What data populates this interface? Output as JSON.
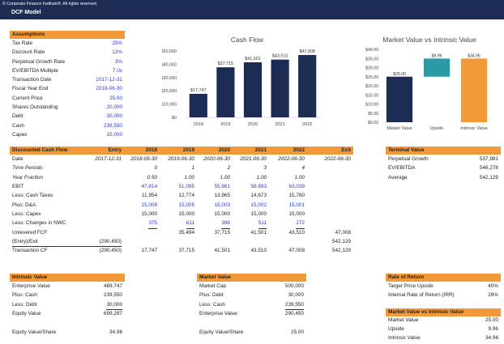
{
  "header": {
    "copyright": "© Corporate Finance Institute®. All rights reserved.",
    "model_title": "DCF Model"
  },
  "assumptions": {
    "title": "Assumptions",
    "rows": [
      {
        "label": "Tax Rate",
        "value": "25%"
      },
      {
        "label": "Discount Rate",
        "value": "12%"
      },
      {
        "label": "Perpetual Growth Rate",
        "value": "3%"
      },
      {
        "label": "EV/EBITDA Multiple",
        "value": "7.0x"
      },
      {
        "label": "Transaction Date",
        "value": "2017-12-31"
      },
      {
        "label": "Fiscal Year End",
        "value": "2018-06-30"
      },
      {
        "label": "Current Price",
        "value": "25.00"
      },
      {
        "label": "Shares Outstanding",
        "value": "20,000"
      },
      {
        "label": "Debt",
        "value": "30,000"
      },
      {
        "label": "Cash",
        "value": "239,550"
      },
      {
        "label": "Capex",
        "value": "15,000"
      }
    ]
  },
  "colors": {
    "navy": "#1c2c52",
    "orange": "#f29a38",
    "teal": "#2a9aa5",
    "input_blue": "#2b3bd0"
  },
  "chart_data": [
    {
      "type": "bar",
      "title": "Cash Flow",
      "categories": [
        "2018",
        "2019",
        "2020",
        "2021",
        "2022"
      ],
      "values": [
        17747,
        37715,
        41501,
        43510,
        47008
      ],
      "data_labels": [
        "$17,747",
        "$37,715",
        "$41,501",
        "$43,510",
        "$47,008"
      ],
      "ylim": [
        0,
        50000
      ],
      "yticks": [
        "$0",
        "$10,000",
        "$20,000",
        "$30,000",
        "$40,000",
        "$50,000"
      ],
      "grid": false,
      "color": "#1c2c52"
    },
    {
      "type": "bar",
      "title": "Market Value vs Intrinsic Value",
      "categories": [
        "Market Value",
        "Upside",
        "Intrinsic Value"
      ],
      "bars": [
        {
          "base": 0,
          "value": 25.0,
          "label": "$25.00",
          "color": "#1c2c52"
        },
        {
          "base": 25.0,
          "value": 9.96,
          "label": "$9.96",
          "color": "#2a9aa5"
        },
        {
          "base": 0,
          "value": 34.96,
          "label": "$34.96",
          "color": "#f29a38"
        }
      ],
      "ylim": [
        0,
        40
      ],
      "yticks": [
        "$0.00",
        "$5.00",
        "$10.00",
        "$15.00",
        "$20.00",
        "$25.00",
        "$30.00",
        "$35.00",
        "$40.00"
      ],
      "grid": false
    }
  ],
  "dcf": {
    "head": [
      "Discounted Cash Flow",
      "Entry",
      "2018",
      "2019",
      "2020",
      "2021",
      "2022",
      "Exit"
    ],
    "rows": [
      {
        "label": "Date",
        "cells": [
          "2017-12-31",
          "2018-06-30",
          "2019-06-30",
          "2020-06-30",
          "2021-06-30",
          "2022-06-30",
          "2022-06-30"
        ],
        "style": "ital-vals"
      },
      {
        "label": "Time Periods",
        "cells": [
          "",
          "0",
          "1",
          "2",
          "3",
          "4",
          ""
        ],
        "style": "ital"
      },
      {
        "label": "Year Fraction",
        "cells": [
          "",
          "0.50",
          "1.00",
          "1.00",
          "1.00",
          "1.00",
          ""
        ],
        "style": "ital"
      },
      {
        "label": "EBIT",
        "cells": [
          "",
          "47,814",
          "51,095",
          "55,861",
          "58,693",
          "63,039",
          ""
        ],
        "style": "blue"
      },
      {
        "label": "Less: Cash Taxes",
        "cells": [
          "",
          "11,954",
          "12,774",
          "13,965",
          "14,673",
          "15,760",
          ""
        ],
        "style": ""
      },
      {
        "label": "Plus: D&A",
        "cells": [
          "",
          "15,008",
          "15,005",
          "15,003",
          "15,002",
          "15,001",
          ""
        ],
        "style": "blue"
      },
      {
        "label": "Less: Capex",
        "cells": [
          "",
          "15,000",
          "15,000",
          "15,000",
          "15,000",
          "15,000",
          ""
        ],
        "style": ""
      },
      {
        "label": "Less: Changes in NWC",
        "cells": [
          "",
          "375",
          "611",
          "398",
          "511",
          "272",
          ""
        ],
        "style": "blue-ul"
      },
      {
        "label": "Unlevered FCF",
        "cells": [
          "",
          "",
          "35,494",
          "37,715",
          "41,501",
          "43,510",
          "47,008"
        ],
        "style": "shift"
      },
      {
        "label": "(Entry)/Exit",
        "cells": [
          "(290,450)",
          "",
          "",
          "",
          "",
          "",
          "542,129"
        ],
        "style": "entry"
      },
      {
        "label": "Transaction CF",
        "cells": [
          "(290,450)",
          "17,747",
          "37,715",
          "41,501",
          "43,510",
          "47,008",
          "542,129"
        ],
        "style": ""
      }
    ]
  },
  "terminal": {
    "title": "Terminal Value",
    "rows": [
      {
        "label": "Perpetual Growth",
        "value": "537,981"
      },
      {
        "label": "EV/EBITDA",
        "value": "546,278"
      },
      {
        "label": "Average",
        "value": "542,129"
      }
    ]
  },
  "intrinsic": {
    "title": "Intrinsic Value",
    "rows": [
      {
        "label": "Enterprise Value",
        "value": "489,747"
      },
      {
        "label": "Plus: Cash",
        "value": "239,550"
      },
      {
        "label": "Less: Debt",
        "value": "30,000"
      },
      {
        "label": "Equity Value",
        "value": "699,297"
      }
    ],
    "per_share": {
      "label": "Equity Value/Share",
      "value": "34.96"
    }
  },
  "market": {
    "title": "Market Value",
    "rows": [
      {
        "label": "Market Cap",
        "value": "500,000"
      },
      {
        "label": "Plus: Debt",
        "value": "30,000"
      },
      {
        "label": "Less: Cash",
        "value": "239,550"
      },
      {
        "label": "Enterprise Value",
        "value": "290,450"
      }
    ],
    "per_share": {
      "label": "Equity Value/Share",
      "value": "25.00"
    }
  },
  "rate_of_return": {
    "title": "Rate of Return",
    "rows": [
      {
        "label": "Target Price Upside",
        "value": "40%"
      },
      {
        "label": "Internal Rate of Return (IRR)",
        "value": "26%"
      }
    ]
  },
  "mv_vs_iv": {
    "title": "Market Value vs Intrinsic Value",
    "rows": [
      {
        "label": "Market Value",
        "value": "25.00"
      },
      {
        "label": "Upside",
        "value": "9.96"
      },
      {
        "label": "Intrinsic Value",
        "value": "34.96"
      }
    ]
  }
}
